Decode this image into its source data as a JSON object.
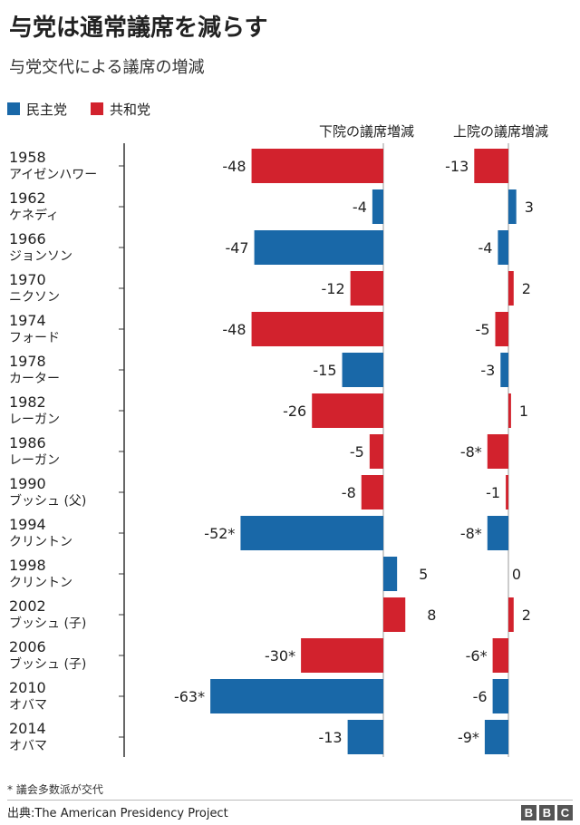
{
  "title": "与党は通常議席を減らす",
  "subtitle": "与党交代による議席の増減",
  "legend": {
    "democrat": "民主党",
    "republican": "共和党"
  },
  "colors": {
    "democrat": "#1968a8",
    "republican": "#d2222d"
  },
  "footnote": "* 議会多数派が交代",
  "source": "出典:The American Presidency Project",
  "logo": [
    "B",
    "B",
    "C"
  ],
  "chart_data": {
    "type": "bar",
    "column_labels": {
      "house": "下院の議席増減",
      "senate": "上院の議席増減"
    },
    "rows": [
      {
        "year": "1958",
        "president": "アイゼンハワー",
        "party": "republican",
        "house": -48,
        "house_label": "-48",
        "senate": -13,
        "senate_label": "-13"
      },
      {
        "year": "1962",
        "president": "ケネディ",
        "party": "democrat",
        "house": -4,
        "house_label": "-4",
        "senate": 3,
        "senate_label": "3"
      },
      {
        "year": "1966",
        "president": "ジョンソン",
        "party": "democrat",
        "house": -47,
        "house_label": "-47",
        "senate": -4,
        "senate_label": "-4"
      },
      {
        "year": "1970",
        "president": "ニクソン",
        "party": "republican",
        "house": -12,
        "house_label": "-12",
        "senate": 2,
        "senate_label": "2"
      },
      {
        "year": "1974",
        "president": "フォード",
        "party": "republican",
        "house": -48,
        "house_label": "-48",
        "senate": -5,
        "senate_label": "-5"
      },
      {
        "year": "1978",
        "president": "カーター",
        "party": "democrat",
        "house": -15,
        "house_label": "-15",
        "senate": -3,
        "senate_label": "-3"
      },
      {
        "year": "1982",
        "president": "レーガン",
        "party": "republican",
        "house": -26,
        "house_label": "-26",
        "senate": 1,
        "senate_label": "1"
      },
      {
        "year": "1986",
        "president": "レーガン",
        "party": "republican",
        "house": -5,
        "house_label": "-5",
        "senate": -8,
        "senate_label": "-8*"
      },
      {
        "year": "1990",
        "president": "ブッシュ (父)",
        "party": "republican",
        "house": -8,
        "house_label": "-8",
        "senate": -1,
        "senate_label": "-1"
      },
      {
        "year": "1994",
        "president": "クリントン",
        "party": "democrat",
        "house": -52,
        "house_label": "-52*",
        "senate": -8,
        "senate_label": "-8*"
      },
      {
        "year": "1998",
        "president": "クリントン",
        "party": "democrat",
        "house": 5,
        "house_label": "5",
        "senate": 0,
        "senate_label": "0"
      },
      {
        "year": "2002",
        "president": "ブッシュ (子)",
        "party": "republican",
        "house": 8,
        "house_label": "8",
        "senate": 2,
        "senate_label": "2"
      },
      {
        "year": "2006",
        "president": "ブッシュ (子)",
        "party": "republican",
        "house": -30,
        "house_label": "-30*",
        "senate": -6,
        "senate_label": "-6*"
      },
      {
        "year": "2010",
        "president": "オバマ",
        "party": "democrat",
        "house": -63,
        "house_label": "-63*",
        "senate": -6,
        "senate_label": "-6"
      },
      {
        "year": "2014",
        "president": "オバマ",
        "party": "democrat",
        "house": -13,
        "house_label": "-13",
        "senate": -9,
        "senate_label": "-9*"
      }
    ]
  }
}
